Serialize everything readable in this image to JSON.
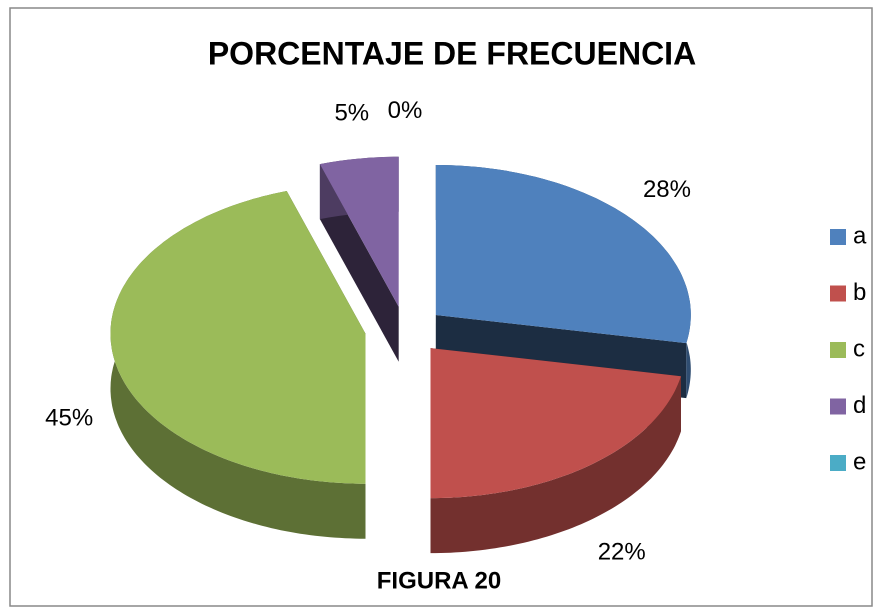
{
  "chart_data": {
    "type": "pie",
    "title": "PORCENTAJE DE FRECUENCIA",
    "caption": "FIGURA 20",
    "categories": [
      "a",
      "b",
      "c",
      "d",
      "e"
    ],
    "values": [
      28,
      22,
      45,
      5,
      0
    ],
    "value_labels": [
      "28%",
      "22%",
      "45%",
      "5%",
      "0%"
    ],
    "colors": [
      "#4f81bd",
      "#c0504d",
      "#9bbb59",
      "#8064a2",
      "#4bacc6"
    ],
    "legend": "right"
  }
}
